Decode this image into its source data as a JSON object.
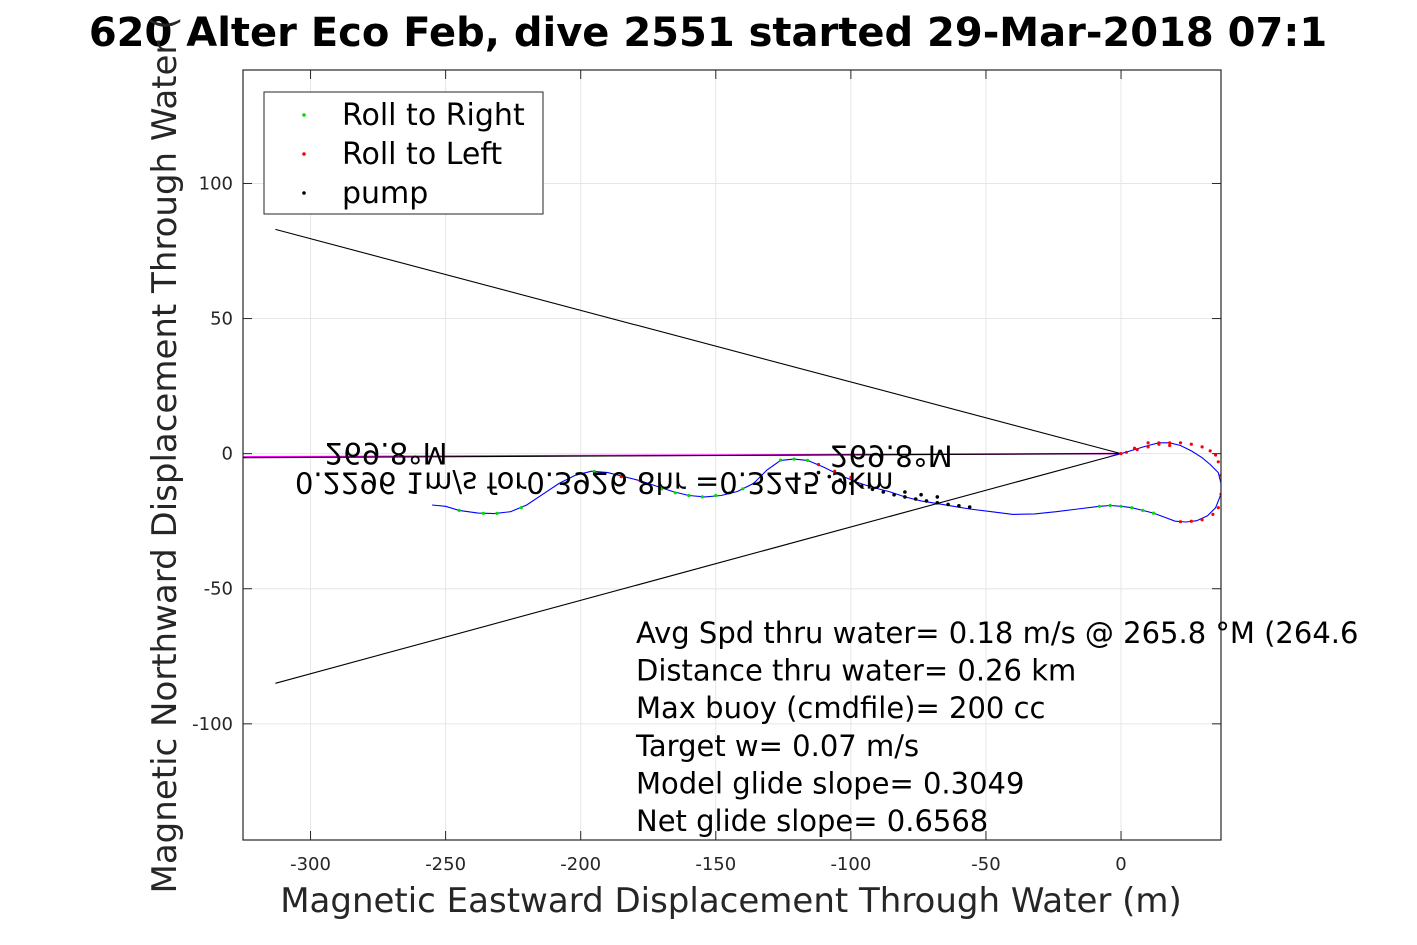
{
  "chart_data": {
    "type": "line",
    "title": "620 Alter Eco Feb, dive 2551 started 29-Mar-2018 07:1",
    "xlabel": "Magnetic Eastward Displacement Through Water (m)",
    "ylabel": "Magnetic Northward Displacement Through Water (",
    "xlim": [
      -325,
      37
    ],
    "ylim": [
      -143,
      142
    ],
    "xticks": [
      -300,
      -250,
      -200,
      -150,
      -100,
      -50,
      0
    ],
    "yticks": [
      -100,
      -50,
      0,
      50,
      100
    ],
    "xtick_labels": [
      "-300",
      "-250",
      "-200",
      "-150",
      "-100",
      "-50",
      "0"
    ],
    "ytick_labels": [
      "-100",
      "-50",
      "0",
      "50",
      "100"
    ],
    "grid": true,
    "legend": {
      "placement": "top-left",
      "entries": [
        {
          "label": "Roll to Right",
          "color": "#00dd00"
        },
        {
          "label": "Roll to Left",
          "color": "#ff0000"
        },
        {
          "label": "pump",
          "color": "#000000"
        }
      ]
    },
    "series": [
      {
        "kind": "track",
        "color": "#0000ff",
        "x": [
          -255,
          -250,
          -245,
          -238,
          -232,
          -226,
          -220,
          -214,
          -208,
          -202,
          -196,
          -190,
          -184,
          -178,
          -172,
          -166,
          -160,
          -154,
          -148,
          -142,
          -136,
          -131,
          -126,
          -121,
          -116,
          -110,
          -104,
          -98,
          -92,
          -86,
          -80,
          -74,
          -68,
          -62,
          -56,
          -48,
          -40,
          -32,
          -24,
          -16,
          -8,
          -4,
          0,
          4,
          8,
          12,
          16,
          20,
          24,
          28,
          32,
          35,
          37,
          37,
          36,
          33,
          30,
          26,
          22,
          18,
          14,
          10,
          5,
          0,
          -4
        ],
        "y": [
          -19,
          -19.5,
          -21,
          -22,
          -22.2,
          -21.5,
          -19,
          -15,
          -11,
          -8,
          -6.5,
          -7,
          -8.5,
          -10,
          -12,
          -14,
          -15.5,
          -16,
          -15.5,
          -14,
          -11,
          -6,
          -2.5,
          -2,
          -2.5,
          -5,
          -8,
          -10.5,
          -12.5,
          -14,
          -16,
          -17.5,
          -18.5,
          -19.5,
          -20.5,
          -21.5,
          -22.5,
          -22.3,
          -21.5,
          -20.5,
          -19.5,
          -19.2,
          -19.5,
          -20,
          -21,
          -22,
          -23.5,
          -25,
          -25.3,
          -24.8,
          -23,
          -20,
          -15,
          -11,
          -7,
          -4,
          -1.5,
          1,
          3,
          4,
          4,
          3,
          1.5,
          0,
          -1
        ]
      },
      {
        "kind": "roll-to-right",
        "color": "#00dd00",
        "x": [
          -245,
          -236,
          -231,
          -222,
          -195,
          -170,
          -165,
          -160,
          -155,
          -150,
          -145,
          -140,
          -126,
          -121,
          -116,
          -8,
          -4,
          0,
          4,
          8,
          12
        ],
        "y": [
          -21,
          -22.1,
          -22.1,
          -20,
          -6.6,
          -13,
          -14.5,
          -15.5,
          -16,
          -15.5,
          -14.5,
          -13,
          -2.4,
          -2,
          -2.5,
          -19.5,
          -19.2,
          -19.5,
          -20,
          -21,
          -22
        ]
      },
      {
        "kind": "roll-to-left",
        "color": "#ff0000",
        "x": [
          -185,
          -178,
          -112,
          -106,
          -100,
          2,
          6,
          10,
          14,
          18,
          22,
          26,
          30,
          33,
          35,
          36,
          37,
          37,
          36,
          34,
          30,
          26,
          22,
          18,
          14,
          10,
          5,
          0
        ],
        "y": [
          -8.5,
          -10,
          -4,
          -6.5,
          -8.8,
          0.5,
          1.5,
          2.5,
          3.5,
          4,
          4,
          3.5,
          2.5,
          1,
          -0.5,
          -3,
          -8,
          -15,
          -20,
          -22.5,
          -24.5,
          -25,
          -25.2,
          3,
          4,
          4,
          2,
          0
        ]
      },
      {
        "kind": "pump",
        "color": "#000000",
        "x": [
          -112,
          -108,
          -104,
          -100,
          -96,
          -92,
          -88,
          -84,
          -80,
          -76,
          -72,
          -68,
          -64,
          -60,
          -56,
          -80,
          -74,
          -68
        ],
        "y": [
          -7,
          -8.5,
          -9.8,
          -11,
          -12,
          -13.2,
          -14.2,
          -15.2,
          -16,
          -16.8,
          -17.5,
          -18.2,
          -18.8,
          -19.3,
          -19.8,
          -14.2,
          -15.2,
          -16
        ]
      },
      {
        "kind": "heading-line",
        "color": "#ff00ff",
        "x": [
          -325,
          0
        ],
        "y": [
          -1.2,
          0
        ]
      },
      {
        "kind": "current-line",
        "color": "#000000",
        "x": [
          -325,
          0
        ],
        "y": [
          -1.5,
          0
        ]
      },
      {
        "kind": "cone-upper",
        "color": "#000000",
        "x": [
          -313,
          0
        ],
        "y": [
          83,
          0
        ]
      },
      {
        "kind": "cone-lower",
        "color": "#000000",
        "x": [
          -313,
          0
        ],
        "y": [
          -85,
          0
        ]
      }
    ],
    "annotations_mirrored": [
      {
        "text": "269.8°M",
        "x": -272,
        "y": 4
      },
      {
        "text": "269.8°M",
        "x": -85,
        "y": 3
      },
      {
        "text": "0.2296 1m/s for0.3926 8hr =0.3245 9km",
        "x": -195,
        "y": -7
      }
    ],
    "summary_lines": [
      "Avg Spd thru water=  0.18 m/s @ 265.8 °M (264.6",
      "Distance thru water=  0.26 km",
      "Max buoy (cmdfile)= 200 cc",
      "Target w= 0.07 m/s",
      "Model glide slope= 0.3049",
      "Net glide slope= 0.6568"
    ]
  }
}
